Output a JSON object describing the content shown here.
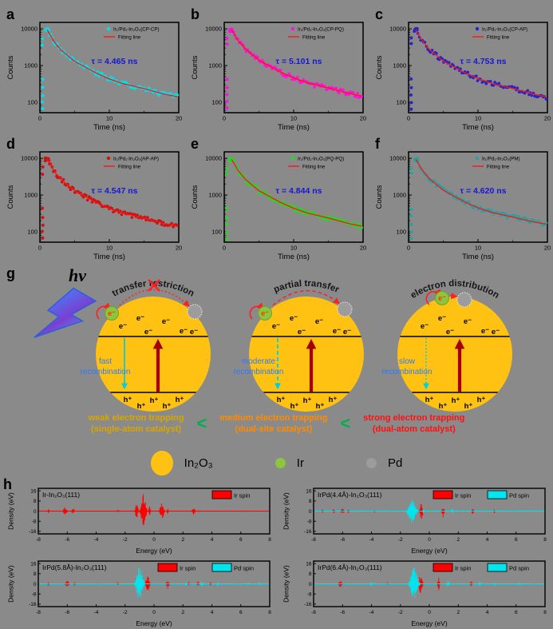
{
  "background": "#8a8a8a",
  "chart_data": [
    {
      "id": "decay-a",
      "type": "scatter",
      "letter": "a",
      "series_label": "Ir₁/Pd₁-In₂O₃(CP-CP)",
      "fit_label": "Fitting line",
      "tau_label": "τ = 4.465 ns",
      "marker_color": "#00dfe8",
      "fit_color": "#ff1212",
      "tau_color": "#1717d6",
      "xlabel": "Time (ns)",
      "ylabel": "Counts",
      "xlim": [
        0,
        20
      ],
      "x_ticks": [
        0,
        10,
        20
      ],
      "y_ticks": [
        100,
        1000,
        10000
      ],
      "ylog": true,
      "decay_points": [
        [
          1,
          9800
        ],
        [
          2,
          4600
        ],
        [
          3,
          2700
        ],
        [
          5,
          1300
        ],
        [
          8,
          640
        ],
        [
          10,
          430
        ],
        [
          12,
          320
        ],
        [
          15,
          235
        ],
        [
          18,
          165
        ],
        [
          20,
          140
        ]
      ]
    },
    {
      "id": "decay-b",
      "type": "scatter",
      "letter": "b",
      "series_label": "Ir₁/Pd₁-In₂O₃(CP-PQ)",
      "fit_label": "Fitting line",
      "tau_label": "τ = 5.101 ns",
      "marker_color": "#ff10dd",
      "fit_color": "#ff1212",
      "tau_color": "#1717d6",
      "xlabel": "Time (ns)",
      "ylabel": "Counts",
      "xlim": [
        0,
        20
      ],
      "x_ticks": [
        0,
        10,
        20
      ],
      "y_ticks": [
        100,
        1000,
        10000
      ],
      "ylog": true,
      "decay_points": [
        [
          1,
          9800
        ],
        [
          2,
          4800
        ],
        [
          3,
          2900
        ],
        [
          5,
          1400
        ],
        [
          8,
          680
        ],
        [
          10,
          460
        ],
        [
          12,
          340
        ],
        [
          15,
          245
        ],
        [
          18,
          175
        ],
        [
          20,
          145
        ]
      ]
    },
    {
      "id": "decay-c",
      "type": "scatter",
      "letter": "c",
      "series_label": "Ir₁/Pd₁-In₂O₃(CP-AP)",
      "fit_label": "Fitting line",
      "tau_label": "τ = 4.753 ns",
      "marker_color": "#2626c8",
      "fit_color": "#ff1212",
      "tau_color": "#1717d6",
      "xlabel": "Time (ns)",
      "ylabel": "Counts",
      "xlim": [
        0,
        20
      ],
      "x_ticks": [
        0,
        10,
        20
      ],
      "y_ticks": [
        100,
        1000,
        10000
      ],
      "ylog": true,
      "decay_points": [
        [
          1,
          9700
        ],
        [
          2,
          4700
        ],
        [
          3,
          2750
        ],
        [
          5,
          1320
        ],
        [
          8,
          650
        ],
        [
          10,
          440
        ],
        [
          12,
          325
        ],
        [
          15,
          238
        ],
        [
          18,
          168
        ],
        [
          20,
          138
        ]
      ]
    },
    {
      "id": "decay-d",
      "type": "scatter",
      "letter": "d",
      "series_label": "Ir₁/Pd₁-In₂O₃(AP-AP)",
      "fit_label": "Fitting line",
      "tau_label": "τ = 4.547 ns",
      "marker_color": "#c81414",
      "fit_color": "#ff1212",
      "tau_color": "#1717d6",
      "xlabel": "Time (ns)",
      "ylabel": "Counts",
      "xlim": [
        0,
        20
      ],
      "x_ticks": [
        0,
        10,
        20
      ],
      "y_ticks": [
        100,
        1000,
        10000
      ],
      "ylog": true,
      "decay_points": [
        [
          1,
          9800
        ],
        [
          2,
          4600
        ],
        [
          3,
          2700
        ],
        [
          5,
          1300
        ],
        [
          8,
          640
        ],
        [
          10,
          430
        ],
        [
          12,
          320
        ],
        [
          15,
          235
        ],
        [
          18,
          165
        ],
        [
          20,
          142
        ]
      ]
    },
    {
      "id": "decay-e",
      "type": "scatter",
      "letter": "e",
      "series_label": "Ir₁/Pd₁-In₂O₃(PQ-PQ)",
      "fit_label": "Fitting line",
      "tau_label": "τ = 4.844 ns",
      "marker_color": "#1edc1e",
      "fit_color": "#ff1212",
      "tau_color": "#1717d6",
      "xlabel": "Time (ns)",
      "ylabel": "Counts",
      "xlim": [
        0,
        20
      ],
      "x_ticks": [
        0,
        10,
        20
      ],
      "y_ticks": [
        100,
        1000,
        10000
      ],
      "ylog": true,
      "decay_points": [
        [
          1,
          9750
        ],
        [
          2,
          4650
        ],
        [
          3,
          2720
        ],
        [
          5,
          1310
        ],
        [
          8,
          645
        ],
        [
          10,
          435
        ],
        [
          12,
          322
        ],
        [
          15,
          236
        ],
        [
          18,
          166
        ],
        [
          20,
          140
        ]
      ]
    },
    {
      "id": "decay-f",
      "type": "scatter",
      "letter": "f",
      "series_label": "Ir₁/Pd₁-In₂O₃(PM)",
      "fit_label": "Fitting line",
      "tau_label": "τ = 4.620 ns",
      "marker_color": "#27a2a2",
      "fit_color": "#ff1212",
      "tau_color": "#1717d6",
      "xlabel": "Time (ns)",
      "ylabel": "Counts",
      "xlim": [
        0,
        20
      ],
      "x_ticks": [
        0,
        10,
        20
      ],
      "y_ticks": [
        100,
        1000,
        10000
      ],
      "ylog": true,
      "decay_points": [
        [
          1,
          9700
        ],
        [
          2,
          4700
        ],
        [
          3,
          2800
        ],
        [
          5,
          1350
        ],
        [
          8,
          660
        ],
        [
          10,
          450
        ],
        [
          12,
          335
        ],
        [
          15,
          250
        ],
        [
          18,
          185
        ],
        [
          20,
          160
        ]
      ]
    },
    {
      "id": "dos-1",
      "type": "area",
      "title": "Ir-In₂O₃(111)",
      "legend": [
        "Ir spin"
      ],
      "ir_color": "#ff0000",
      "pd_color": "#00e5ee",
      "xlabel": "Energy (eV)",
      "ylabel": "Density (eV)",
      "xlim": [
        -8,
        8
      ],
      "ylim": [
        -18,
        18
      ],
      "x_ticks": [
        -8,
        -6,
        -4,
        -2,
        0,
        2,
        4,
        6,
        8
      ],
      "y_ticks": [
        16,
        8,
        0,
        -8,
        -16
      ],
      "ir_peaks": [
        [
          -7.3,
          0.12,
          1.5
        ],
        [
          -6.15,
          0.25,
          3
        ],
        [
          -5.6,
          0.18,
          2
        ],
        [
          -2.5,
          0.1,
          1.2
        ],
        [
          -1.2,
          0.18,
          6
        ],
        [
          -0.72,
          0.3,
          14
        ],
        [
          -0.3,
          0.12,
          4
        ],
        [
          0.55,
          0.25,
          7
        ],
        [
          0.95,
          0.1,
          2
        ],
        [
          2.75,
          0.2,
          3
        ]
      ],
      "pd_peaks": []
    },
    {
      "id": "dos-2",
      "type": "area",
      "title": "IrPd(4.4Å)-In₂O₃(111)",
      "legend": [
        "Ir spin",
        "Pd spin"
      ],
      "ir_color": "#ff0000",
      "pd_color": "#00e5ee",
      "xlabel": "Energy (eV)",
      "ylabel": "Density (eV)",
      "xlim": [
        -8,
        8
      ],
      "ylim": [
        -18,
        18
      ],
      "x_ticks": [
        -8,
        -6,
        -4,
        -2,
        0,
        2,
        4,
        6,
        8
      ],
      "y_ticks": [
        16,
        8,
        0,
        -8,
        -16
      ],
      "ir_peaks": [
        [
          -7.4,
          0.1,
          1.5
        ],
        [
          -6.6,
          0.14,
          1.6
        ],
        [
          -6.0,
          0.2,
          2.5
        ],
        [
          -5.6,
          0.1,
          1.5
        ],
        [
          -3.8,
          0.1,
          1
        ],
        [
          -1.5,
          0.18,
          3
        ],
        [
          -0.55,
          0.2,
          7
        ],
        [
          0.95,
          0.15,
          5
        ],
        [
          3.0,
          0.12,
          3
        ],
        [
          4.5,
          0.1,
          1.4
        ]
      ],
      "pd_peaks": [
        [
          -1.2,
          0.5,
          9.5
        ],
        [
          -0.4,
          0.1,
          2
        ],
        [
          1.6,
          0.1,
          2
        ]
      ]
    },
    {
      "id": "dos-3",
      "type": "area",
      "title": "IrPd(5.8Å)-In₂O₃(111)",
      "legend": [
        "Ir spin",
        "Pd spin"
      ],
      "ir_color": "#ff0000",
      "pd_color": "#00e5ee",
      "xlabel": "Energy (eV)",
      "ylabel": "Density (eV)",
      "xlim": [
        -8,
        8
      ],
      "ylim": [
        -18,
        18
      ],
      "x_ticks": [
        -8,
        -6,
        -4,
        -2,
        0,
        2,
        4,
        6,
        8
      ],
      "y_ticks": [
        16,
        8,
        0,
        -8,
        -16
      ],
      "ir_peaks": [
        [
          -7.3,
          0.1,
          1.5
        ],
        [
          -6.0,
          0.25,
          2.6
        ],
        [
          -5.5,
          0.1,
          1.5
        ],
        [
          -2.5,
          0.1,
          1.5
        ],
        [
          -0.45,
          0.25,
          7
        ],
        [
          0.95,
          0.18,
          4
        ],
        [
          2.4,
          0.1,
          1.5
        ],
        [
          3.05,
          0.15,
          2
        ],
        [
          3.9,
          0.1,
          1.5
        ]
      ],
      "pd_peaks": [
        [
          -1.0,
          0.4,
          14
        ],
        [
          2.2,
          0.12,
          2
        ],
        [
          3.3,
          0.15,
          2
        ],
        [
          4.4,
          0.1,
          1.5
        ],
        [
          6.5,
          0.1,
          1
        ],
        [
          7.3,
          0.1,
          1.4
        ]
      ]
    },
    {
      "id": "dos-4",
      "type": "area",
      "title": "IrPd(6.4Å)-In₂O₃(111)",
      "legend": [
        "Ir spin",
        "Pd spin"
      ],
      "ir_color": "#ff0000",
      "pd_color": "#00e5ee",
      "xlabel": "Energy (eV)",
      "ylabel": "Density (eV)",
      "xlim": [
        -8,
        8
      ],
      "ylim": [
        -18,
        18
      ],
      "x_ticks": [
        -8,
        -6,
        -4,
        -2,
        0,
        2,
        4,
        6,
        8
      ],
      "y_ticks": [
        16,
        8,
        0,
        -8,
        -16
      ],
      "ir_peaks": [
        [
          -6.15,
          0.2,
          3
        ],
        [
          -2.9,
          0.1,
          1
        ],
        [
          -0.6,
          0.22,
          8
        ],
        [
          0.65,
          0.15,
          5
        ],
        [
          2.9,
          0.15,
          2
        ]
      ],
      "pd_peaks": [
        [
          -4.0,
          0.12,
          1.5
        ],
        [
          -1.05,
          0.45,
          13.5
        ],
        [
          1.3,
          0.15,
          2.5
        ],
        [
          3.5,
          0.15,
          2
        ],
        [
          4.5,
          0.1,
          1.5
        ],
        [
          6.2,
          0.1,
          1
        ]
      ]
    }
  ],
  "panel_g": {
    "letter": "g",
    "hv_label": "hν",
    "electron": "e⁻",
    "hole": "h⁺",
    "spheres": [
      {
        "arc_label": "transfer restriction",
        "recomb1": "fast",
        "recomb2": "recombination"
      },
      {
        "arc_label": "partial transfer",
        "recomb1": "moderate",
        "recomb2": "recombination"
      },
      {
        "arc_label": "electron distribution",
        "recomb1": "slow",
        "recomb2": "recombination"
      }
    ],
    "captions": [
      {
        "text1": "weak electron trapping",
        "text2": "(single-atom catalyst)",
        "color": "#d8a600"
      },
      {
        "text1": "medium electron trapping",
        "text2": "(dual-site catalyst)",
        "color": "#ff8c00"
      },
      {
        "text1": "strong electron trapping",
        "text2": "(dual-atom catalyst)",
        "color": "#ff1010"
      }
    ],
    "separator": "<",
    "separator_color": "#00b050",
    "legend": [
      {
        "label": "In₂O₃",
        "color": "#ffc213"
      },
      {
        "label": "Ir",
        "color": "#8cc63e"
      },
      {
        "label": "Pd",
        "color": "#9c9c9c"
      }
    ],
    "colors": {
      "sphere": "#ffc213",
      "recomb_arrow": "#00d0e0",
      "excite_arrow": "#a50000",
      "transfer_arrow": "#ff2020",
      "recomb_text": "#2979ff",
      "electron_on_ir": "#ff3300",
      "ir_atom": "#8cc63e",
      "pd_atom": "#9c9c9c"
    }
  },
  "panel_h": {
    "letter": "h"
  }
}
